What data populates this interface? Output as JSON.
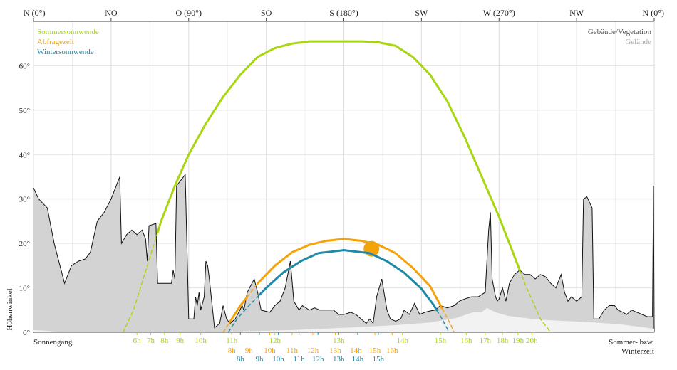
{
  "chart_data": {
    "type": "line",
    "title": "",
    "ylabel": "Höhenwinkel",
    "x_axis": "azimuth",
    "xlim": [
      0,
      360
    ],
    "ylim": [
      0,
      70
    ],
    "yticks": [
      {
        "value": 0,
        "label": "0°"
      },
      {
        "value": 10,
        "label": "10°"
      },
      {
        "value": 20,
        "label": "20°"
      },
      {
        "value": 30,
        "label": "30°"
      },
      {
        "value": 40,
        "label": "40°"
      },
      {
        "value": 50,
        "label": "50°"
      },
      {
        "value": 60,
        "label": "60°"
      }
    ],
    "direction_labels": [
      {
        "az": 0,
        "label": "N (0°)"
      },
      {
        "az": 45,
        "label": "NO"
      },
      {
        "az": 90,
        "label": "O (90°)"
      },
      {
        "az": 135,
        "label": "SO"
      },
      {
        "az": 180,
        "label": "S (180°)"
      },
      {
        "az": 225,
        "label": "SW"
      },
      {
        "az": 270,
        "label": "W (270°)"
      },
      {
        "az": 315,
        "label": "NW"
      },
      {
        "az": 360,
        "label": "N (0°)"
      }
    ],
    "grid": true,
    "legend_left": [
      {
        "label": "Sommersonnwende",
        "color": "#a8d60f"
      },
      {
        "label": "Abfragezeit",
        "color": "#f5a30a"
      },
      {
        "label": "Wintersonnwende",
        "color": "#1e8aa8"
      }
    ],
    "legend_right": [
      {
        "label": "Gebäude/Vegetation",
        "color": "#555555"
      },
      {
        "label": "Gelände",
        "color": "#aaaaaa"
      }
    ],
    "bottom_left_label": "Sonnengang",
    "bottom_right_label": [
      "Sommer- bzw.",
      "Winterzeit"
    ],
    "series": [
      {
        "name": "Sommersonnwende",
        "color": "#a8d60f",
        "points": [
          [
            52,
            0
          ],
          [
            58,
            5
          ],
          [
            66,
            15
          ],
          [
            74,
            25
          ],
          [
            82,
            33
          ],
          [
            90,
            40
          ],
          [
            100,
            47
          ],
          [
            110,
            53
          ],
          [
            120,
            58
          ],
          [
            130,
            62
          ],
          [
            140,
            64
          ],
          [
            150,
            65
          ],
          [
            160,
            65.5
          ],
          [
            170,
            65.5
          ],
          [
            180,
            65.5
          ],
          [
            190,
            65.5
          ],
          [
            200,
            65.3
          ],
          [
            210,
            64.5
          ],
          [
            220,
            62
          ],
          [
            230,
            58
          ],
          [
            240,
            52
          ],
          [
            250,
            44
          ],
          [
            260,
            35
          ],
          [
            270,
            26
          ],
          [
            278,
            18
          ],
          [
            286,
            10
          ],
          [
            294,
            3
          ],
          [
            300,
            0
          ]
        ],
        "hours": [
          [
            "6h",
            60
          ],
          [
            "7h",
            68
          ],
          [
            "8h",
            76
          ],
          [
            "9h",
            85
          ],
          [
            "10h",
            97
          ],
          [
            "11h",
            115
          ],
          [
            "12h",
            140
          ],
          [
            "13h",
            177
          ],
          [
            "14h",
            214
          ],
          [
            "15h",
            236
          ],
          [
            "16h",
            251
          ],
          [
            "17h",
            262
          ],
          [
            "18h",
            272
          ],
          [
            "19h",
            281
          ],
          [
            "20h",
            289
          ]
        ]
      },
      {
        "name": "Abfragezeit",
        "color": "#f5a30a",
        "points": [
          [
            110,
            0
          ],
          [
            115,
            3
          ],
          [
            120,
            6
          ],
          [
            130,
            11
          ],
          [
            140,
            15
          ],
          [
            150,
            18
          ],
          [
            160,
            19.7
          ],
          [
            170,
            20.6
          ],
          [
            180,
            21
          ],
          [
            190,
            20.6
          ],
          [
            200,
            19.7
          ],
          [
            210,
            17.8
          ],
          [
            220,
            14.5
          ],
          [
            230,
            10.4
          ],
          [
            237,
            5.4
          ],
          [
            242,
            1.7
          ],
          [
            244,
            0
          ]
        ],
        "sun": [
          196,
          18.8
        ],
        "hours": [
          [
            "8h",
            115
          ],
          [
            "9h",
            125
          ],
          [
            "10h",
            137
          ],
          [
            "11h",
            150
          ],
          [
            "12h",
            162
          ],
          [
            "13h",
            175
          ],
          [
            "14h",
            187
          ],
          [
            "15h",
            198
          ],
          [
            "16h",
            208
          ]
        ]
      },
      {
        "name": "Wintersonnwende",
        "color": "#1e8aa8",
        "points": [
          [
            113,
            0
          ],
          [
            118,
            3
          ],
          [
            125,
            6
          ],
          [
            135,
            10
          ],
          [
            145,
            13.5
          ],
          [
            155,
            16
          ],
          [
            165,
            17.8
          ],
          [
            180,
            18.5
          ],
          [
            195,
            17.8
          ],
          [
            205,
            16
          ],
          [
            215,
            13.4
          ],
          [
            225,
            9.8
          ],
          [
            232,
            6.2
          ],
          [
            237,
            3
          ],
          [
            241,
            0
          ]
        ],
        "hours": [
          [
            "8h",
            120
          ],
          [
            "9h",
            131
          ],
          [
            "10h",
            142
          ],
          [
            "11h",
            154
          ],
          [
            "12h",
            165
          ],
          [
            "13h",
            177
          ],
          [
            "14h",
            188
          ],
          [
            "15h",
            200
          ]
        ]
      }
    ],
    "horizon_buildings": [
      [
        0,
        32.5
      ],
      [
        3,
        30
      ],
      [
        8,
        28
      ],
      [
        12,
        20
      ],
      [
        18,
        11
      ],
      [
        22,
        15
      ],
      [
        26,
        16
      ],
      [
        30,
        16.5
      ],
      [
        33,
        18
      ],
      [
        37,
        25
      ],
      [
        41,
        27
      ],
      [
        45,
        30
      ],
      [
        50,
        35
      ],
      [
        51,
        20
      ],
      [
        54,
        22
      ],
      [
        57,
        23
      ],
      [
        60,
        22
      ],
      [
        63,
        23
      ],
      [
        65,
        21
      ],
      [
        66,
        16
      ],
      [
        67,
        24
      ],
      [
        71,
        24.5
      ],
      [
        72,
        11
      ],
      [
        76,
        11
      ],
      [
        80,
        11
      ],
      [
        81,
        14
      ],
      [
        82,
        12
      ],
      [
        83,
        33
      ],
      [
        88,
        35.5
      ],
      [
        90,
        3
      ],
      [
        93,
        3
      ],
      [
        94,
        8
      ],
      [
        95,
        6
      ],
      [
        96,
        9
      ],
      [
        97,
        5
      ],
      [
        99,
        8
      ],
      [
        100,
        16
      ],
      [
        101,
        15
      ],
      [
        102,
        12
      ],
      [
        105,
        1
      ],
      [
        108,
        2
      ],
      [
        110,
        6
      ],
      [
        112,
        3
      ],
      [
        114,
        2
      ],
      [
        117,
        3
      ],
      [
        121,
        6
      ],
      [
        122,
        5
      ],
      [
        124,
        9
      ],
      [
        128,
        12
      ],
      [
        130,
        9
      ],
      [
        132,
        5
      ],
      [
        137,
        4.5
      ],
      [
        140,
        6
      ],
      [
        143,
        7
      ],
      [
        146,
        10
      ],
      [
        149,
        16
      ],
      [
        151,
        7
      ],
      [
        154,
        5
      ],
      [
        156,
        6
      ],
      [
        160,
        5
      ],
      [
        163,
        5.5
      ],
      [
        166,
        5
      ],
      [
        170,
        5
      ],
      [
        174,
        5
      ],
      [
        177,
        4
      ],
      [
        180,
        4
      ],
      [
        184,
        4.5
      ],
      [
        187,
        4
      ],
      [
        190,
        3
      ],
      [
        193,
        2
      ],
      [
        195,
        3
      ],
      [
        197,
        2
      ],
      [
        199,
        8
      ],
      [
        202,
        12
      ],
      [
        205,
        5
      ],
      [
        207,
        3
      ],
      [
        210,
        2.5
      ],
      [
        213,
        3
      ],
      [
        215,
        5
      ],
      [
        218,
        4
      ],
      [
        221,
        6.5
      ],
      [
        224,
        4
      ],
      [
        227,
        4.5
      ],
      [
        230,
        4.8
      ],
      [
        233,
        5
      ],
      [
        236,
        6
      ],
      [
        240,
        5.5
      ],
      [
        244,
        6
      ],
      [
        247,
        7
      ],
      [
        250,
        7.5
      ],
      [
        254,
        8
      ],
      [
        258,
        8
      ],
      [
        262,
        9
      ],
      [
        264,
        23
      ],
      [
        265,
        27
      ],
      [
        266,
        12
      ],
      [
        268,
        8
      ],
      [
        269,
        7
      ],
      [
        270,
        7.5
      ],
      [
        272,
        10
      ],
      [
        274,
        7
      ],
      [
        276,
        11
      ],
      [
        279,
        13
      ],
      [
        282,
        14
      ],
      [
        285,
        13
      ],
      [
        288,
        13
      ],
      [
        291,
        12
      ],
      [
        294,
        13
      ],
      [
        297,
        12.5
      ],
      [
        300,
        11
      ],
      [
        303,
        10
      ],
      [
        306,
        13
      ],
      [
        308,
        9
      ],
      [
        310,
        7
      ],
      [
        312,
        8
      ],
      [
        315,
        7
      ],
      [
        318,
        8
      ],
      [
        319,
        30
      ],
      [
        321,
        30.5
      ],
      [
        324,
        28
      ],
      [
        325,
        3
      ],
      [
        328,
        3
      ],
      [
        331,
        5
      ],
      [
        334,
        6
      ],
      [
        337,
        6
      ],
      [
        339,
        5
      ],
      [
        342,
        4.5
      ],
      [
        344,
        4
      ],
      [
        347,
        5
      ],
      [
        350,
        4.5
      ],
      [
        353,
        4
      ],
      [
        356,
        3.5
      ],
      [
        359,
        3.5
      ],
      [
        359.6,
        33
      ],
      [
        360,
        0
      ]
    ],
    "horizon_terrain": [
      [
        0,
        0.5
      ],
      [
        5,
        0.4
      ],
      [
        15,
        0.1
      ],
      [
        25,
        0.1
      ],
      [
        40,
        0.1
      ],
      [
        60,
        0.1
      ],
      [
        90,
        0.1
      ],
      [
        120,
        0.2
      ],
      [
        150,
        0.5
      ],
      [
        180,
        1.0
      ],
      [
        210,
        1.6
      ],
      [
        230,
        2.2
      ],
      [
        245,
        3.2
      ],
      [
        255,
        4.5
      ],
      [
        260,
        4.5
      ],
      [
        263,
        5.5
      ],
      [
        268,
        4.5
      ],
      [
        275,
        3.7
      ],
      [
        285,
        3.2
      ],
      [
        295,
        2.8
      ],
      [
        310,
        2.5
      ],
      [
        325,
        2.2
      ],
      [
        340,
        1.8
      ],
      [
        350,
        1.3
      ],
      [
        360,
        0.8
      ]
    ]
  }
}
